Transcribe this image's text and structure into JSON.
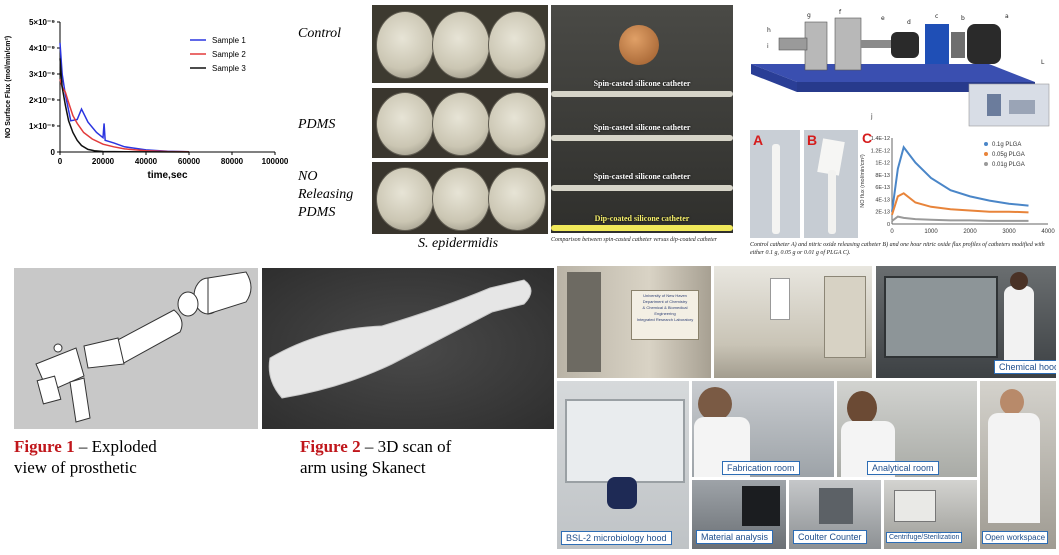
{
  "nf_chart": {
    "chart_data": {
      "type": "line",
      "xlabel": "time,sec",
      "ylabel": "NO Surface Flux (mol/min/cm²)",
      "xlim": [
        0,
        100000
      ],
      "ylim": [
        0,
        5e-09
      ],
      "x_ticks": [
        "0",
        "20000",
        "40000",
        "60000",
        "80000",
        "100000"
      ],
      "y_ticks": [
        "0",
        "1×10⁻⁹",
        "2×10⁻⁹",
        "3×10⁻⁹",
        "4×10⁻⁹",
        "5×10⁻⁹"
      ],
      "legend_position": "top-right",
      "series": [
        {
          "name": "Sample 1",
          "color": "#2b35e0",
          "x": [
            0,
            1000,
            2500,
            5000,
            8000,
            10000,
            13000,
            17000,
            20000,
            20500,
            21000,
            25000,
            30000,
            40000,
            50000,
            60000
          ],
          "y": [
            4.2e-09,
            3e-09,
            2.2e-09,
            1.2e-09,
            1.25e-09,
            1.65e-09,
            1.15e-09,
            7.5e-10,
            5.5e-10,
            1.1e-09,
            4.5e-10,
            3.5e-10,
            2e-10,
            8e-11,
            3e-11,
            1e-11
          ]
        },
        {
          "name": "Sample 2",
          "color": "#e23b3b",
          "x": [
            0,
            1000,
            2500,
            4000,
            6000,
            8000,
            11000,
            15000,
            20000,
            25000,
            30000,
            40000,
            50000,
            60000
          ],
          "y": [
            2.8e-09,
            2.5e-09,
            2.3e-09,
            1.9e-09,
            1.4e-09,
            1.1e-09,
            7.5e-10,
            5e-10,
            3e-10,
            2e-10,
            1.2e-10,
            5e-11,
            2e-11,
            1e-11
          ]
        },
        {
          "name": "Sample 3",
          "color": "#111111",
          "x": [
            0,
            1000,
            2500,
            4000,
            6000,
            8000,
            10000,
            13000,
            16000,
            20000,
            30000,
            60000
          ],
          "y": [
            3.6e-09,
            2.5e-09,
            1.8e-09,
            1.2e-09,
            7.5e-10,
            4.5e-10,
            2.5e-10,
            1e-10,
            5e-11,
            2e-11,
            1e-11,
            0.0
          ]
        }
      ]
    }
  },
  "plate_labels": {
    "control": "Control",
    "pdms": "PDMS",
    "no_releasing": [
      "NO",
      "Releasing",
      "PDMS"
    ],
    "organism": "S. epidermidis"
  },
  "catheter_panel": {
    "labels": [
      "Spin-casted silicone catheter",
      "Spin-casted silicone catheter",
      "Spin-casted silicone catheter",
      "Dip-coated silicone catheter"
    ],
    "caption": "Comparison between spin-casted catheter versus dip-coated catheter"
  },
  "machine_panel": {
    "part_letters": [
      "h",
      "g",
      "f",
      "e",
      "d",
      "c",
      "b",
      "a",
      "i",
      "j",
      "L"
    ]
  },
  "flux_panel": {
    "panel_letters": [
      "A",
      "B",
      "C"
    ],
    "caption": "Control catheter A) and nitric oxide releasing catheter B) and one hour nitric oxide flux profiles of catheters modified with either 0.1 g, 0.05 g or 0.01 g of PLGA C).",
    "chart_data": {
      "type": "line",
      "ylabel": "NO flux (mol/min/cm²)",
      "xlim": [
        0,
        4000
      ],
      "ylim": [
        0,
        1.4e-12
      ],
      "x_ticks": [
        "0",
        "1000",
        "2000",
        "3000",
        "4000"
      ],
      "y_ticks": [
        "0",
        "2E-13",
        "4E-13",
        "6E-13",
        "8E-13",
        "1E-12",
        "1.2E-12",
        "1.4E-12"
      ],
      "legend_position": "top-right",
      "series": [
        {
          "name": "0.1g PLGA",
          "color": "#4a86c8",
          "x": [
            0,
            150,
            300,
            600,
            1000,
            1500,
            2000,
            2500,
            3000,
            3500
          ],
          "y": [
            2e-13,
            9e-13,
            1.25e-12,
            1e-12,
            7.5e-13,
            5.5e-13,
            4.5e-13,
            3.8e-13,
            3.3e-13,
            3e-13
          ]
        },
        {
          "name": "0.05g PLGA",
          "color": "#e8843a",
          "x": [
            0,
            150,
            300,
            600,
            1000,
            1500,
            2000,
            2500,
            3000,
            3500
          ],
          "y": [
            1.5e-13,
            4.5e-13,
            5e-13,
            3.5e-13,
            2.8e-13,
            2.4e-13,
            2.2e-13,
            2e-13,
            2e-13,
            1.9e-13
          ]
        },
        {
          "name": "0.01g PLGA",
          "color": "#9a9a9a",
          "x": [
            0,
            150,
            300,
            600,
            1000,
            1500,
            2000,
            2500,
            3000,
            3500
          ],
          "y": [
            5e-14,
            1.2e-13,
            1e-13,
            8e-14,
            7e-14,
            6e-14,
            6e-14,
            5e-14,
            5e-14,
            5e-14
          ]
        }
      ]
    }
  },
  "figures": {
    "fig1_label": "Figure 1",
    "fig1_text_line1": " – Exploded",
    "fig1_text_line2": "view of prosthetic",
    "fig2_label": "Figure 2",
    "fig2_text_line1": " – 3D scan of",
    "fig2_text_line2": "arm using Skanect"
  },
  "lab_photos": {
    "door_sign": [
      "University of New Haven",
      "Department of Chemistry",
      "& Chemical & Biomedical",
      "Engineering",
      "Integrated Research Laboratory"
    ],
    "tags": {
      "chemical_hood": "Chemical hood",
      "bsl2": "BSL-2 microbiology hood",
      "fabrication": "Fabrication room",
      "analytical": "Analytical room",
      "material": "Material analysis",
      "coulter": "Coulter Counter",
      "centrifuge": "Centrifuge/Sterilization",
      "open_workspace": "Open workspace"
    }
  },
  "colors": {
    "figure_red": "#c0161b",
    "tag_border": "#2d6db5"
  }
}
